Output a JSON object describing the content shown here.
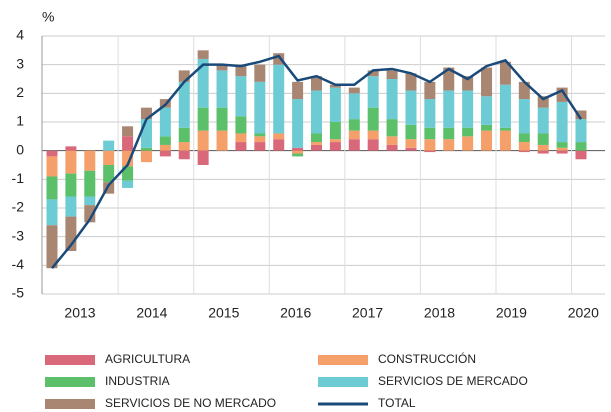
{
  "chart_data": {
    "type": "stacked_bar_line",
    "y_unit": "%",
    "year_labels": [
      "2013",
      "2014",
      "2015",
      "2016",
      "2017",
      "2018",
      "2019",
      "2020"
    ],
    "ylim": [
      -5,
      4
    ],
    "yticks": [
      -5,
      -4,
      -3,
      -2,
      -1,
      0,
      1,
      2,
      3,
      4
    ],
    "grid": true,
    "series": [
      {
        "name": "AGRICULTURA",
        "color": "#d9687a",
        "values": [
          -0.2,
          0.15,
          0,
          0,
          0.5,
          0,
          -0.2,
          -0.3,
          -0.5,
          0,
          0.3,
          0.3,
          0.4,
          0.1,
          0.2,
          0.3,
          0.4,
          0.4,
          0.2,
          0.1,
          -0.05,
          0,
          0,
          0,
          0,
          -0.05,
          -0.1,
          -0.1,
          -0.3
        ]
      },
      {
        "name": "CONSTRUCCIÓN",
        "color": "#f5a06a",
        "values": [
          -0.7,
          -0.8,
          -0.7,
          -0.5,
          -0.55,
          -0.4,
          0.2,
          0.3,
          0.7,
          0.7,
          0.3,
          0.2,
          0.2,
          -0.1,
          0.1,
          0.1,
          0.3,
          0.3,
          0.3,
          0.3,
          0.4,
          0.4,
          0.5,
          0.7,
          0.7,
          0.3,
          0.2,
          0.1,
          0
        ]
      },
      {
        "name": "INDUSTRIA",
        "color": "#5cbf6a",
        "values": [
          -0.8,
          -0.8,
          -0.9,
          -0.6,
          -0.5,
          0.1,
          0.3,
          0.5,
          0.8,
          0.8,
          0.6,
          0.1,
          0,
          -0.1,
          0.3,
          0.6,
          0.4,
          0.8,
          0.6,
          0.5,
          0.4,
          0.4,
          0.3,
          0.2,
          0.1,
          0.3,
          0.4,
          0.2,
          0.3
        ]
      },
      {
        "name": "SERVICIOS DE MERCADO",
        "color": "#6dcbd4",
        "values": [
          -0.9,
          -0.7,
          -0.3,
          0.35,
          -0.25,
          1.0,
          1.0,
          1.6,
          1.7,
          1.3,
          1.4,
          1.8,
          2.4,
          1.7,
          1.5,
          1.2,
          0.9,
          1.1,
          1.4,
          1.2,
          1.0,
          1.3,
          1.3,
          1.0,
          1.5,
          1.2,
          0.9,
          1.4,
          0.8
        ]
      },
      {
        "name": "SERVICIOS DE NO MERCADO",
        "color": "#a98672",
        "values": [
          -1.5,
          -1.2,
          -0.6,
          -0.4,
          0.35,
          0.4,
          0.3,
          0.4,
          0.3,
          0.2,
          0.4,
          0.6,
          0.4,
          0.6,
          0.5,
          0.1,
          0.2,
          0.2,
          0.3,
          0.6,
          0.6,
          0.8,
          0.5,
          1.0,
          0.8,
          0.6,
          0.4,
          0.5,
          0.3
        ]
      },
      {
        "name": "TOTAL",
        "color": "#1a4a7a",
        "line": true,
        "values": [
          -4.1,
          -3.3,
          -2.4,
          -1.2,
          -0.5,
          1.1,
          1.6,
          2.4,
          3.0,
          3.0,
          2.95,
          3.1,
          3.3,
          2.45,
          2.6,
          2.3,
          2.3,
          2.8,
          2.85,
          2.7,
          2.4,
          2.85,
          2.5,
          2.95,
          3.15,
          2.4,
          1.8,
          2.1,
          1.1
        ]
      }
    ]
  }
}
